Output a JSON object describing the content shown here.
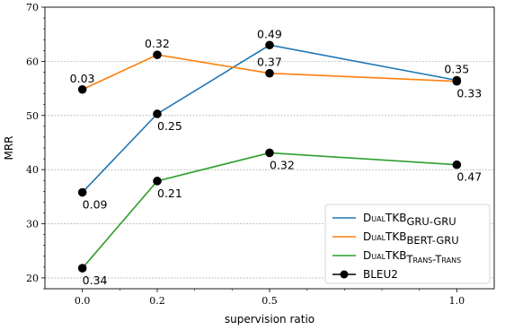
{
  "chart_data": {
    "type": "line",
    "xlabel": "supervision ratio",
    "ylabel": "MRR",
    "x": [
      0.0,
      0.2,
      0.5,
      1.0
    ],
    "x_tick_labels": [
      "0.0",
      "0.2",
      "0.5",
      "1.0"
    ],
    "ylim": [
      18,
      70
    ],
    "y_ticks": [
      20,
      30,
      40,
      50,
      60,
      70
    ],
    "grid": "horizontal dashed",
    "legend_placement": "lower-right",
    "series": [
      {
        "name_main": "DualTKB",
        "name_sub": "GRU-GRU",
        "color": "#1f77b4",
        "values": [
          35.8,
          50.3,
          63.0,
          56.5
        ],
        "annotations": [
          "0.09",
          "0.25",
          "0.49",
          "0.35"
        ],
        "annotation_side": [
          "below",
          "below",
          "above",
          "above"
        ]
      },
      {
        "name_main": "DualTKB",
        "name_sub": "BERT-GRU",
        "color": "#ff7f0e",
        "values": [
          54.8,
          61.2,
          57.8,
          56.3
        ],
        "annotations": [
          "0.03",
          "0.32",
          "0.37",
          "0.33"
        ],
        "annotation_side": [
          "above",
          "above",
          "above",
          "below"
        ]
      },
      {
        "name_main": "DualTKB",
        "name_sub": "Trans-Trans",
        "color": "#2ca02c",
        "values": [
          21.8,
          37.9,
          43.1,
          40.9
        ],
        "annotations": [
          "0.34",
          "0.21",
          "0.32",
          "0.47"
        ],
        "annotation_side": [
          "below",
          "below",
          "below",
          "below"
        ]
      }
    ],
    "marker_legend": {
      "name": "BLEU2",
      "color": "#000000"
    }
  }
}
